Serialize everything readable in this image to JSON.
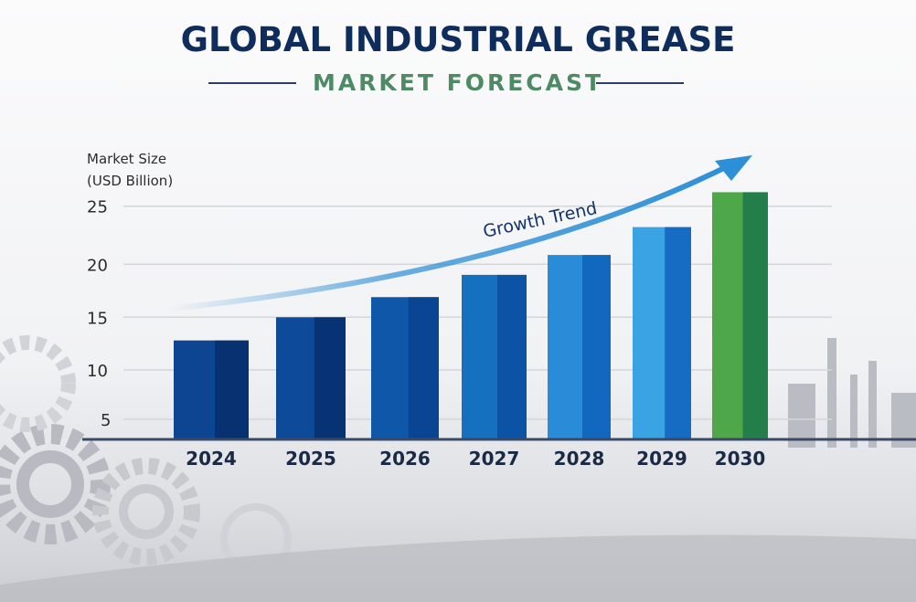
{
  "chart_data": {
    "type": "bar",
    "title": "GLOBAL INDUSTRIAL GREASE",
    "subtitle": "MARKET FORECAST",
    "ylabel_line1": "Market Size",
    "ylabel_line2": "(USD Billion)",
    "xlabel": "",
    "categories": [
      "2024",
      "2025",
      "2026",
      "2027",
      "2028",
      "2029",
      "2030"
    ],
    "values": [
      12.8,
      15.0,
      16.9,
      19.0,
      20.8,
      23.2,
      26.2
    ],
    "yticks": [
      5,
      10,
      15,
      20,
      25
    ],
    "ylim": [
      3,
      27
    ],
    "grid": true,
    "annotation": "Growth Trend",
    "colors": {
      "bars": [
        "#0d4592",
        "#0d4a9a",
        "#0f57a8",
        "#1670c0",
        "#2a8bd8",
        "#3aa3e3",
        "#4ea84a"
      ],
      "bars_dark": [
        "#072b66",
        "#062c68",
        "#0a3f8c",
        "#0a4a9c",
        "#0a5cb6",
        "#0b5ab8",
        "#17704a"
      ],
      "title": "#0f2d5c",
      "subtitle": "#4e8a64",
      "arrow": "#2d8fd6"
    }
  }
}
